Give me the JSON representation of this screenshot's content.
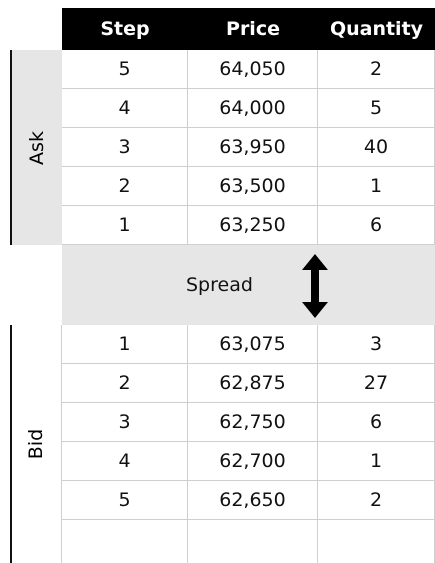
{
  "table": {
    "header": [
      "Step",
      "Price",
      "Quantity"
    ],
    "ask": {
      "label": "Ask",
      "rows": [
        [
          "5",
          "64,050",
          "2"
        ],
        [
          "4",
          "64,000",
          "5"
        ],
        [
          "3",
          "63,950",
          "40"
        ],
        [
          "2",
          "63,500",
          "1"
        ],
        [
          "1",
          "63,250",
          "6"
        ]
      ]
    },
    "spread": "Spread",
    "bid": {
      "label": "Bid",
      "rows": [
        [
          "1",
          "63,075",
          "3"
        ],
        [
          "2",
          "62,875",
          "27"
        ],
        [
          "3",
          "62,750",
          "6"
        ],
        [
          "4",
          "62,700",
          "1"
        ],
        [
          "5",
          "62,650",
          "2"
        ]
      ]
    }
  }
}
